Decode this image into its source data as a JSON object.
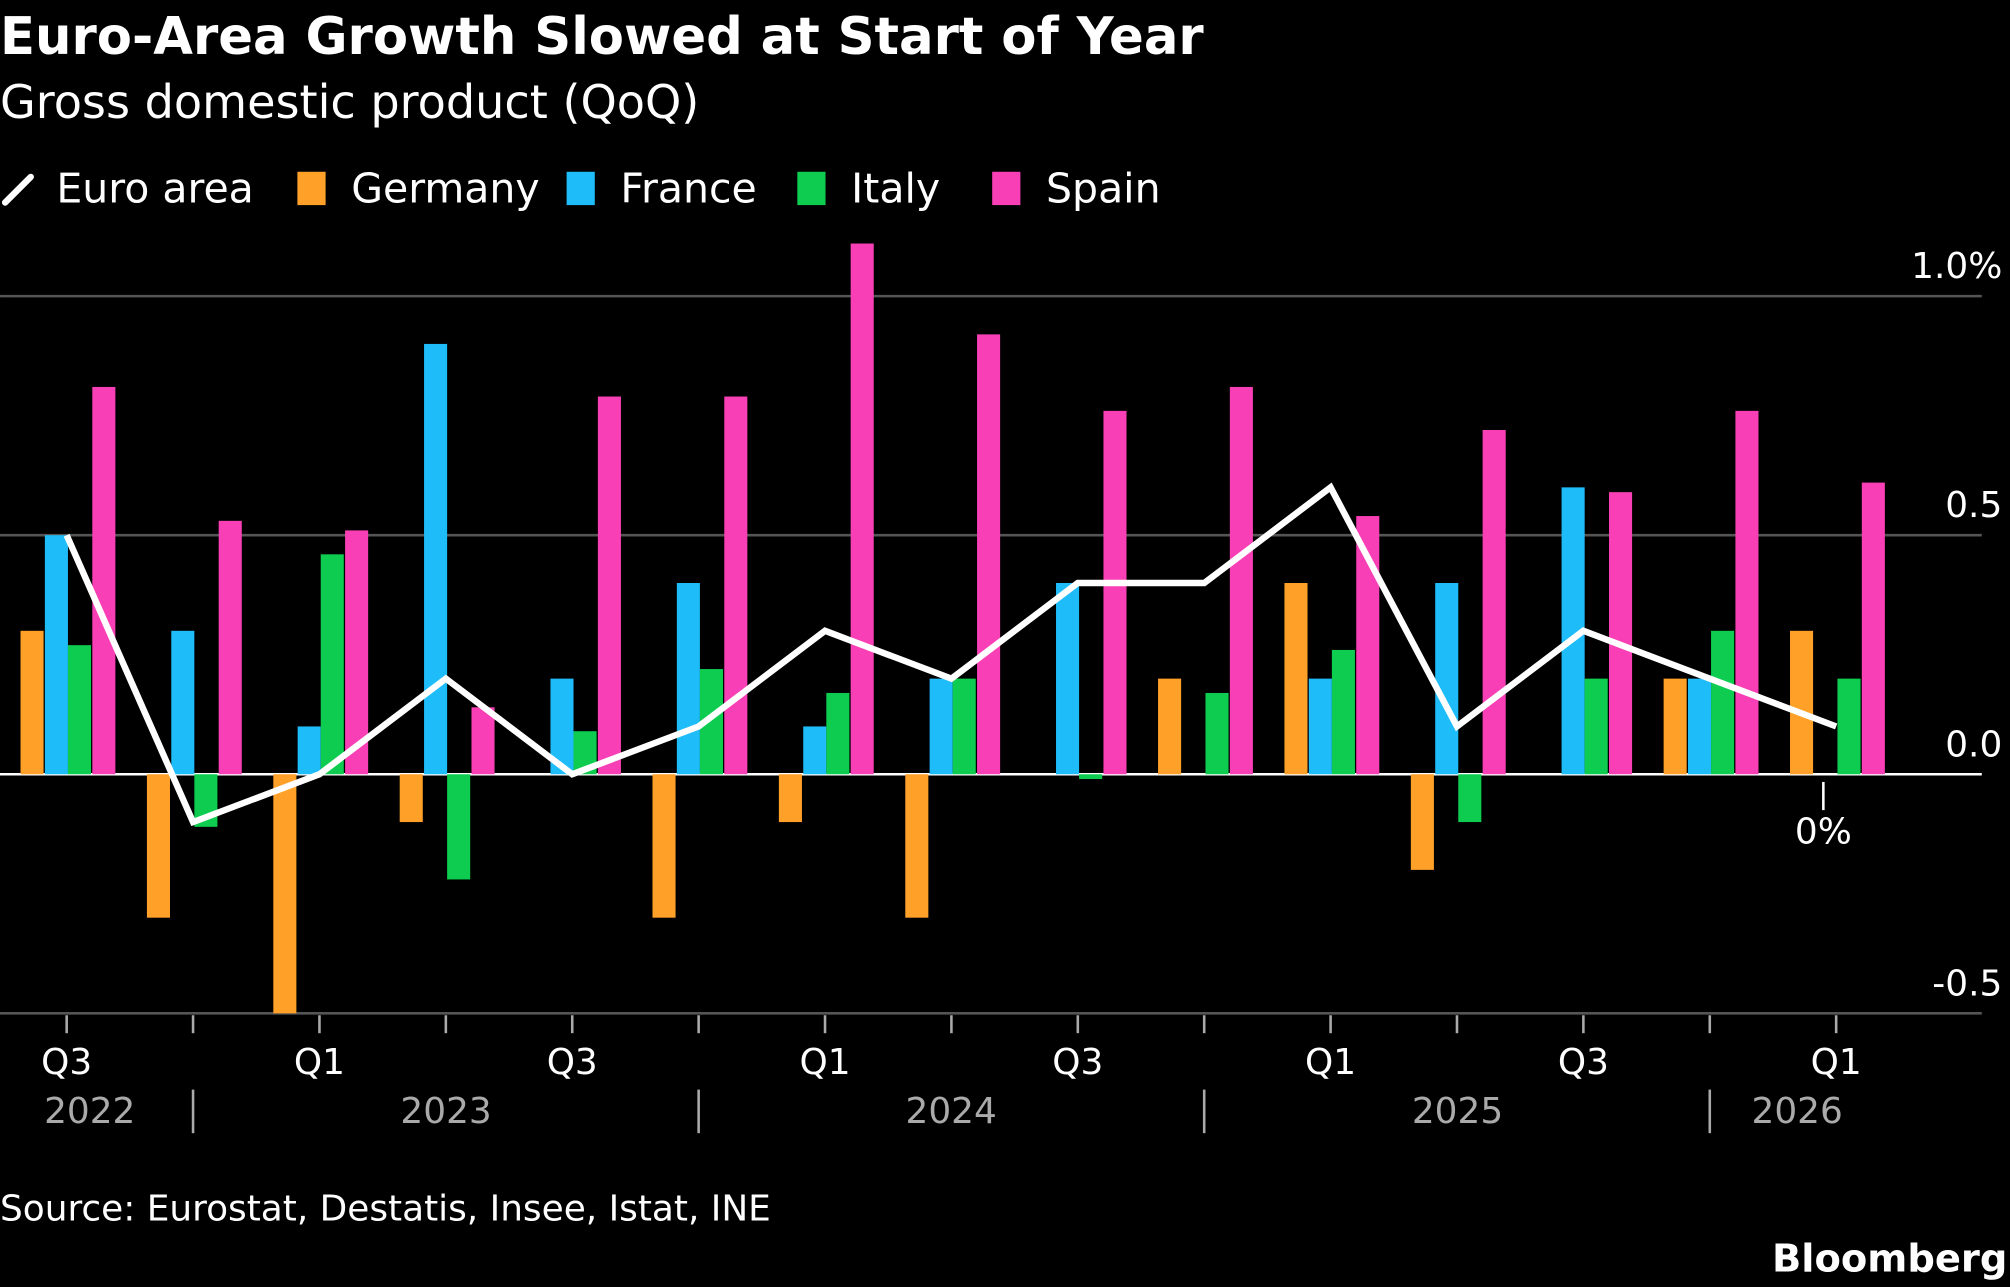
{
  "title": "Euro-Area Growth Slowed at Start of Year",
  "subtitle": "Gross domestic product (QoQ)",
  "source": "Source: Eurostat, Destatis, Insee, Istat, INE",
  "brand": "Bloomberg",
  "chart_data": {
    "type": "bar",
    "title": "Euro-Area Growth Slowed at Start of Year",
    "subtitle": "Gross domestic product (QoQ)",
    "categories": [
      "Q3 2022",
      "Q4 2022",
      "Q1 2023",
      "Q2 2023",
      "Q3 2023",
      "Q4 2023",
      "Q1 2024",
      "Q2 2024",
      "Q3 2024",
      "Q4 2024",
      "Q1 2025",
      "Q2 2025",
      "Q3 2025",
      "Q4 2025",
      "Q1 2026"
    ],
    "x_tick_labels": [
      "Q3",
      "Q1",
      "Q3",
      "Q1",
      "Q3",
      "Q1",
      "Q3",
      "Q1"
    ],
    "x_tick_label_indices": [
      0,
      2,
      4,
      6,
      8,
      10,
      12,
      14
    ],
    "year_labels": [
      "2022",
      "2023",
      "2024",
      "2025",
      "2026"
    ],
    "y_ticks": [
      {
        "value": 1.0,
        "label": "1.0%"
      },
      {
        "value": 0.5,
        "label": "0.5"
      },
      {
        "value": 0.0,
        "label": "0.0"
      },
      {
        "value": -0.5,
        "label": "-0.5"
      }
    ],
    "ylim": [
      -0.5,
      1.0
    ],
    "unit": "%",
    "grid": true,
    "legend_position": "top-left",
    "series": [
      {
        "name": "Euro area",
        "kind": "line",
        "color": "#ffffff",
        "values": [
          0.5,
          -0.1,
          0.0,
          0.2,
          0.0,
          0.1,
          0.3,
          0.2,
          0.4,
          0.4,
          0.6,
          0.1,
          0.3,
          0.2,
          0.1
        ]
      },
      {
        "name": "Germany",
        "kind": "bar",
        "color": "#ffa029",
        "values": [
          0.3,
          -0.3,
          -0.5,
          -0.1,
          0.0,
          -0.3,
          -0.1,
          -0.3,
          0.0,
          0.2,
          0.4,
          -0.2,
          0.0,
          0.2,
          0.3
        ]
      },
      {
        "name": "France",
        "kind": "bar",
        "color": "#1fbcfa",
        "values": [
          0.5,
          0.3,
          0.1,
          0.9,
          0.2,
          0.4,
          0.1,
          0.2,
          0.4,
          0.0,
          0.2,
          0.4,
          0.6,
          0.2,
          0.0
        ]
      },
      {
        "name": "Italy",
        "kind": "bar",
        "color": "#0dcc4f",
        "values": [
          0.27,
          -0.11,
          0.46,
          -0.22,
          0.09,
          0.22,
          0.17,
          0.2,
          -0.01,
          0.17,
          0.26,
          -0.1,
          0.2,
          0.3,
          0.2
        ]
      },
      {
        "name": "Spain",
        "kind": "bar",
        "color": "#f93fb5",
        "values": [
          0.81,
          0.53,
          0.51,
          0.14,
          0.79,
          0.79,
          1.11,
          0.92,
          0.76,
          0.81,
          0.54,
          0.72,
          0.59,
          0.76,
          0.61
        ]
      }
    ],
    "annotations": [
      {
        "category": "Q1 2026",
        "series": "France",
        "text": "0%"
      }
    ]
  }
}
